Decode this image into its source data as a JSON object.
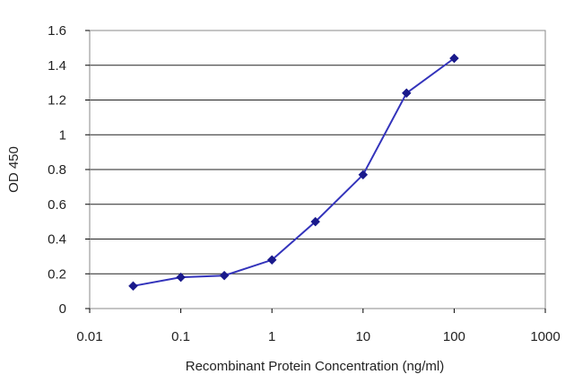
{
  "chart_data": {
    "type": "line",
    "title": "",
    "xlabel": "Recombinant Protein Concentration (ng/ml)",
    "ylabel": "OD 450",
    "x_scale": "log",
    "xlim": [
      0.01,
      1000
    ],
    "ylim": [
      0,
      1.6
    ],
    "x_ticks": [
      "0.01",
      "0.1",
      "1",
      "10",
      "100",
      "1000"
    ],
    "y_ticks": [
      "0",
      "0.2",
      "0.4",
      "0.6",
      "0.8",
      "1",
      "1.2",
      "1.4",
      "1.6"
    ],
    "grid": "horizontal",
    "legend": "none",
    "series": [
      {
        "x": [
          0.03,
          0.1,
          0.3,
          1,
          3,
          10,
          30,
          100
        ],
        "y": [
          0.13,
          0.18,
          0.19,
          0.28,
          0.5,
          0.77,
          1.24,
          1.44
        ]
      }
    ],
    "colors": {
      "line": "#3333bb",
      "marker": "#1a1a8c",
      "grid": "#222222",
      "plot_border": "#888888"
    }
  }
}
